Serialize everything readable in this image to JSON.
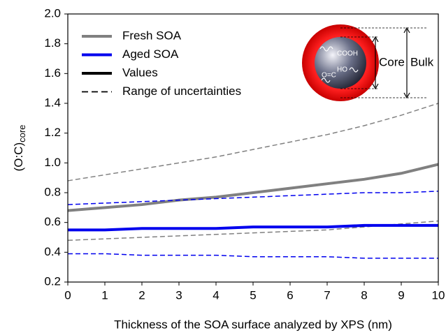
{
  "chart_data": {
    "type": "line",
    "x_label": "Thickness of the SOA surface analyzed by XPS (nm)",
    "y_label": "(O:C)",
    "y_label_subscript": "core",
    "x": [
      0,
      1,
      2,
      3,
      4,
      5,
      6,
      7,
      8,
      9,
      10
    ],
    "xlim": [
      0,
      10
    ],
    "xticks": [
      0,
      1,
      2,
      3,
      4,
      5,
      6,
      7,
      8,
      9,
      10
    ],
    "ylim": [
      0.2,
      2.0
    ],
    "yticks": [
      0.2,
      0.4,
      0.6,
      0.8,
      {
        "value": 1.0,
        "label": "1.0"
      },
      1.2,
      1.4,
      1.6,
      1.8,
      {
        "value": 2.0,
        "label": "2.0"
      }
    ],
    "series": [
      {
        "name": "Fresh SOA",
        "color": "#808080",
        "values": [
          0.68,
          0.7,
          0.72,
          0.75,
          0.77,
          0.8,
          0.83,
          0.86,
          0.89,
          0.93,
          0.99
        ],
        "lower": [
          0.48,
          0.49,
          0.5,
          0.51,
          0.52,
          0.53,
          0.54,
          0.55,
          0.57,
          0.59,
          0.61
        ],
        "upper": [
          0.88,
          0.92,
          0.96,
          1.0,
          1.04,
          1.09,
          1.14,
          1.19,
          1.25,
          1.32,
          1.4
        ]
      },
      {
        "name": "Aged SOA",
        "color": "#0000ee",
        "values": [
          0.55,
          0.55,
          0.56,
          0.56,
          0.56,
          0.57,
          0.57,
          0.57,
          0.58,
          0.58,
          0.58
        ],
        "lower": [
          0.39,
          0.39,
          0.38,
          0.38,
          0.38,
          0.37,
          0.37,
          0.37,
          0.36,
          0.36,
          0.36
        ],
        "upper": [
          0.72,
          0.73,
          0.74,
          0.75,
          0.76,
          0.77,
          0.78,
          0.79,
          0.8,
          0.8,
          0.81
        ]
      }
    ],
    "legend_extra": [
      "Values",
      "Range of uncertainties"
    ],
    "inset": {
      "groups": [
        "COOH",
        "HO",
        "O=C"
      ],
      "core": "Core",
      "bulk": "Bulk"
    }
  }
}
